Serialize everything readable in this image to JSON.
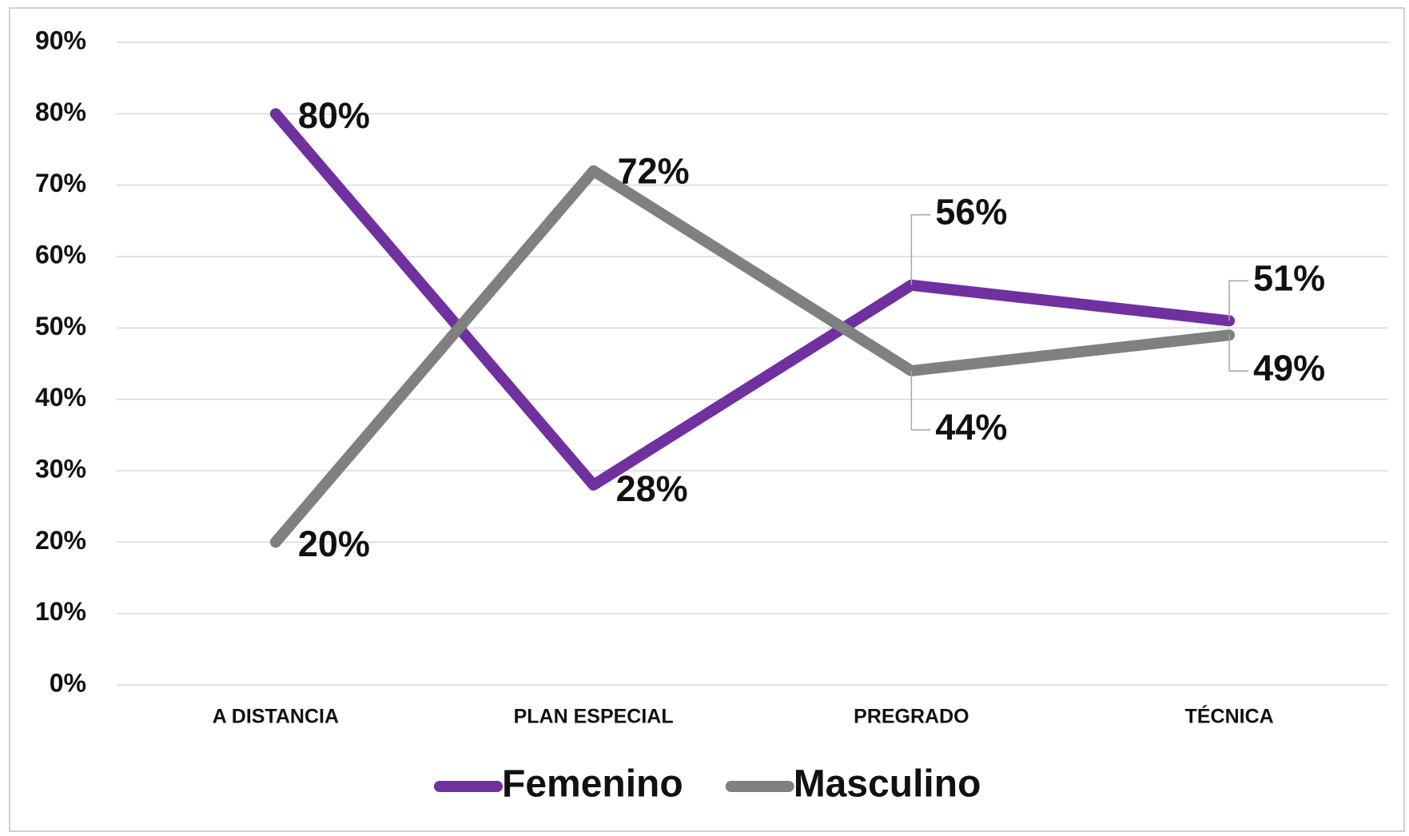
{
  "chart_data": {
    "type": "line",
    "categories": [
      "A DISTANCIA",
      "PLAN ESPECIAL",
      "PREGRADO",
      "TÉCNICA"
    ],
    "series": [
      {
        "name": "Femenino",
        "color": "#7030a0",
        "values": [
          80,
          28,
          56,
          51
        ],
        "value_labels": [
          "80%",
          "28%",
          "56%",
          "51%"
        ]
      },
      {
        "name": "Masculino",
        "color": "#808080",
        "values": [
          20,
          72,
          44,
          49
        ],
        "value_labels": [
          "20%",
          "72%",
          "44%",
          "49%"
        ]
      }
    ],
    "ylim": [
      0,
      90
    ],
    "yticks": [
      {
        "value": 0,
        "label": "0%"
      },
      {
        "value": 10,
        "label": "10%"
      },
      {
        "value": 20,
        "label": "20%"
      },
      {
        "value": 30,
        "label": "30%"
      },
      {
        "value": 40,
        "label": "40%"
      },
      {
        "value": 50,
        "label": "50%"
      },
      {
        "value": 60,
        "label": "60%"
      },
      {
        "value": 70,
        "label": "70%"
      },
      {
        "value": 80,
        "label": "80%"
      },
      {
        "value": 90,
        "label": "90%"
      }
    ],
    "grid": true,
    "legend": "bottom"
  }
}
